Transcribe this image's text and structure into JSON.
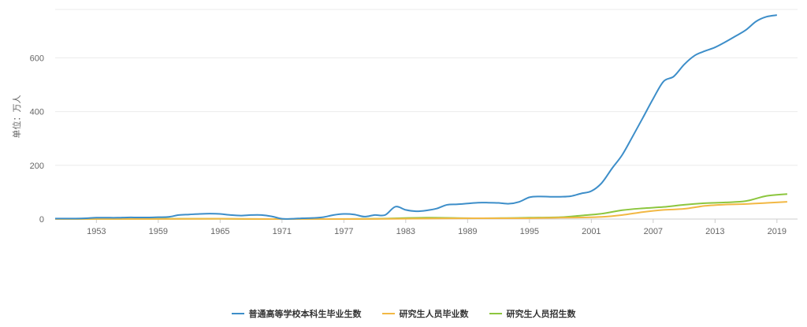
{
  "chart_data": {
    "type": "line",
    "ylabel": "单位：万人",
    "ylim": [
      0,
      780
    ],
    "yticks": [
      0,
      200,
      400,
      600
    ],
    "xlim": [
      1949,
      2021
    ],
    "xticks": [
      1953,
      1959,
      1965,
      1971,
      1977,
      1983,
      1989,
      1995,
      2001,
      2007,
      2013,
      2019
    ],
    "grid": true,
    "legend_position": "bottom-center",
    "series": [
      {
        "name": "普通高等学校本科生毕业生数",
        "color": "#3d8ec9",
        "points": [
          [
            1949,
            2
          ],
          [
            1950,
            2
          ],
          [
            1951,
            2
          ],
          [
            1952,
            3
          ],
          [
            1953,
            5
          ],
          [
            1954,
            5
          ],
          [
            1955,
            5
          ],
          [
            1956,
            6
          ],
          [
            1957,
            6
          ],
          [
            1958,
            6
          ],
          [
            1959,
            7
          ],
          [
            1960,
            8
          ],
          [
            1961,
            15
          ],
          [
            1962,
            17
          ],
          [
            1963,
            19
          ],
          [
            1964,
            20
          ],
          [
            1965,
            19
          ],
          [
            1966,
            15
          ],
          [
            1967,
            13
          ],
          [
            1968,
            15
          ],
          [
            1969,
            15
          ],
          [
            1970,
            10
          ],
          [
            1971,
            1
          ],
          [
            1972,
            1
          ],
          [
            1973,
            3
          ],
          [
            1974,
            4
          ],
          [
            1975,
            7
          ],
          [
            1976,
            15
          ],
          [
            1977,
            19
          ],
          [
            1978,
            17
          ],
          [
            1979,
            9
          ],
          [
            1980,
            15
          ],
          [
            1981,
            15
          ],
          [
            1982,
            46
          ],
          [
            1983,
            34
          ],
          [
            1984,
            29
          ],
          [
            1985,
            32
          ],
          [
            1986,
            39
          ],
          [
            1987,
            53
          ],
          [
            1988,
            55
          ],
          [
            1989,
            58
          ],
          [
            1990,
            61
          ],
          [
            1991,
            61
          ],
          [
            1992,
            60
          ],
          [
            1993,
            57
          ],
          [
            1994,
            64
          ],
          [
            1995,
            81
          ],
          [
            1996,
            84
          ],
          [
            1997,
            83
          ],
          [
            1998,
            83
          ],
          [
            1999,
            85
          ],
          [
            2000,
            95
          ],
          [
            2001,
            104
          ],
          [
            2002,
            134
          ],
          [
            2003,
            188
          ],
          [
            2004,
            239
          ],
          [
            2005,
            307
          ],
          [
            2006,
            377
          ],
          [
            2007,
            448
          ],
          [
            2008,
            512
          ],
          [
            2009,
            531
          ],
          [
            2010,
            575
          ],
          [
            2011,
            608
          ],
          [
            2012,
            625
          ],
          [
            2013,
            639
          ],
          [
            2014,
            659
          ],
          [
            2015,
            681
          ],
          [
            2016,
            704
          ],
          [
            2017,
            736
          ],
          [
            2018,
            753
          ],
          [
            2019,
            759
          ]
        ]
      },
      {
        "name": "研究生人员毕业数",
        "color": "#f2b844",
        "points": [
          [
            1949,
            0
          ],
          [
            1955,
            0.5
          ],
          [
            1960,
            0.5
          ],
          [
            1965,
            1
          ],
          [
            1970,
            0
          ],
          [
            1975,
            0
          ],
          [
            1980,
            0.5
          ],
          [
            1985,
            2
          ],
          [
            1990,
            3
          ],
          [
            1995,
            3
          ],
          [
            1998,
            5
          ],
          [
            2000,
            6
          ],
          [
            2002,
            8
          ],
          [
            2004,
            15
          ],
          [
            2006,
            26
          ],
          [
            2008,
            34
          ],
          [
            2010,
            38
          ],
          [
            2012,
            49
          ],
          [
            2014,
            54
          ],
          [
            2016,
            56
          ],
          [
            2018,
            60
          ],
          [
            2020,
            64
          ]
        ]
      },
      {
        "name": "研究生人员招生数",
        "color": "#8cc63e",
        "points": [
          [
            1949,
            0
          ],
          [
            1955,
            0.5
          ],
          [
            1960,
            1
          ],
          [
            1965,
            1
          ],
          [
            1970,
            0
          ],
          [
            1975,
            0
          ],
          [
            1980,
            1
          ],
          [
            1985,
            5
          ],
          [
            1990,
            3
          ],
          [
            1995,
            5
          ],
          [
            1998,
            7
          ],
          [
            2000,
            13
          ],
          [
            2002,
            20
          ],
          [
            2004,
            33
          ],
          [
            2006,
            40
          ],
          [
            2008,
            45
          ],
          [
            2010,
            53
          ],
          [
            2012,
            59
          ],
          [
            2014,
            62
          ],
          [
            2016,
            67
          ],
          [
            2018,
            86
          ],
          [
            2020,
            93
          ]
        ]
      }
    ]
  }
}
